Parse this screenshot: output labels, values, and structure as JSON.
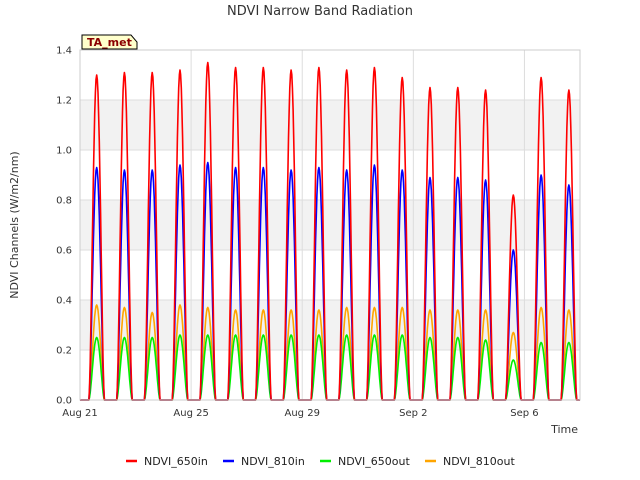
{
  "chart_data": {
    "type": "line",
    "title": "NDVI Narrow Band Radiation",
    "xlabel": "Time",
    "ylabel": "NDVI Channels (W/m2/nm)",
    "badge": "TA_met",
    "ylim": [
      0,
      1.4
    ],
    "xlim_days": [
      0,
      18
    ],
    "y_ticks": [
      "0.0",
      "0.2",
      "0.4",
      "0.6",
      "0.8",
      "1.0",
      "1.2",
      "1.4"
    ],
    "x_ticks": [
      {
        "day": 0,
        "label": "Aug 21"
      },
      {
        "day": 4,
        "label": "Aug 25"
      },
      {
        "day": 8,
        "label": "Aug 29"
      },
      {
        "day": 12,
        "label": "Sep 2"
      },
      {
        "day": 16,
        "label": "Sep 6"
      }
    ],
    "background_bands": true,
    "grid": true,
    "legend_position": "bottom",
    "day_center_offset": 0.6,
    "daily_peaks": [
      {
        "date": "Aug 21",
        "NDVI_650in": 1.3,
        "NDVI_810in": 0.93,
        "NDVI_650out": 0.25,
        "NDVI_810out": 0.38
      },
      {
        "date": "Aug 22",
        "NDVI_650in": 1.31,
        "NDVI_810in": 0.92,
        "NDVI_650out": 0.25,
        "NDVI_810out": 0.37
      },
      {
        "date": "Aug 23",
        "NDVI_650in": 1.31,
        "NDVI_810in": 0.92,
        "NDVI_650out": 0.25,
        "NDVI_810out": 0.35
      },
      {
        "date": "Aug 24",
        "NDVI_650in": 1.32,
        "NDVI_810in": 0.94,
        "NDVI_650out": 0.26,
        "NDVI_810out": 0.38
      },
      {
        "date": "Aug 25",
        "NDVI_650in": 1.35,
        "NDVI_810in": 0.95,
        "NDVI_650out": 0.26,
        "NDVI_810out": 0.37
      },
      {
        "date": "Aug 26",
        "NDVI_650in": 1.33,
        "NDVI_810in": 0.93,
        "NDVI_650out": 0.26,
        "NDVI_810out": 0.36
      },
      {
        "date": "Aug 27",
        "NDVI_650in": 1.33,
        "NDVI_810in": 0.93,
        "NDVI_650out": 0.26,
        "NDVI_810out": 0.36
      },
      {
        "date": "Aug 28",
        "NDVI_650in": 1.32,
        "NDVI_810in": 0.92,
        "NDVI_650out": 0.26,
        "NDVI_810out": 0.36
      },
      {
        "date": "Aug 29",
        "NDVI_650in": 1.33,
        "NDVI_810in": 0.93,
        "NDVI_650out": 0.26,
        "NDVI_810out": 0.36
      },
      {
        "date": "Aug 30",
        "NDVI_650in": 1.32,
        "NDVI_810in": 0.92,
        "NDVI_650out": 0.26,
        "NDVI_810out": 0.37
      },
      {
        "date": "Aug 31",
        "NDVI_650in": 1.33,
        "NDVI_810in": 0.94,
        "NDVI_650out": 0.26,
        "NDVI_810out": 0.37
      },
      {
        "date": "Sep 1",
        "NDVI_650in": 1.29,
        "NDVI_810in": 0.92,
        "NDVI_650out": 0.26,
        "NDVI_810out": 0.37
      },
      {
        "date": "Sep 2",
        "NDVI_650in": 1.25,
        "NDVI_810in": 0.89,
        "NDVI_650out": 0.25,
        "NDVI_810out": 0.36
      },
      {
        "date": "Sep 3",
        "NDVI_650in": 1.25,
        "NDVI_810in": 0.89,
        "NDVI_650out": 0.25,
        "NDVI_810out": 0.36
      },
      {
        "date": "Sep 4",
        "NDVI_650in": 1.24,
        "NDVI_810in": 0.88,
        "NDVI_650out": 0.24,
        "NDVI_810out": 0.36
      },
      {
        "date": "Sep 5",
        "NDVI_650in": 0.82,
        "NDVI_810in": 0.6,
        "NDVI_650out": 0.16,
        "NDVI_810out": 0.27
      },
      {
        "date": "Sep 6",
        "NDVI_650in": 1.29,
        "NDVI_810in": 0.9,
        "NDVI_650out": 0.23,
        "NDVI_810out": 0.37
      },
      {
        "date": "Sep 7",
        "NDVI_650in": 1.24,
        "NDVI_810in": 0.86,
        "NDVI_650out": 0.23,
        "NDVI_810out": 0.36
      }
    ],
    "series": [
      {
        "name": "NDVI_650in",
        "color": "#ff0000"
      },
      {
        "name": "NDVI_810in",
        "color": "#0000ff"
      },
      {
        "name": "NDVI_650out",
        "color": "#00ee00"
      },
      {
        "name": "NDVI_810out",
        "color": "#ffa500"
      }
    ]
  }
}
